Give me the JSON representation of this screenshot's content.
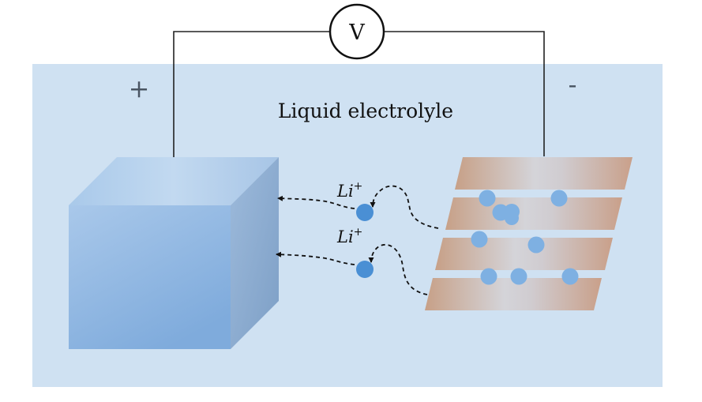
{
  "voltmeter": {
    "label": "V"
  },
  "terminals": {
    "positive": "+",
    "negative": "-"
  },
  "electrolyte": {
    "label": "Liquid electrolyle"
  },
  "ions": [
    {
      "base": "Li",
      "charge": "+"
    },
    {
      "base": "Li",
      "charge": "+"
    }
  ],
  "colors": {
    "electrolyte": "#cfe1f2",
    "cathode_front": "#8fb5df",
    "cathode_side": "#8aaace",
    "cathode_top": "#b8d3ee",
    "anode_layer_edge": "#c9a48b",
    "anode_layer_center": "#d3d3d8",
    "ion": "#4a8fd4",
    "intercalated_ion": "#7eb0e2",
    "wire": "#222222"
  }
}
